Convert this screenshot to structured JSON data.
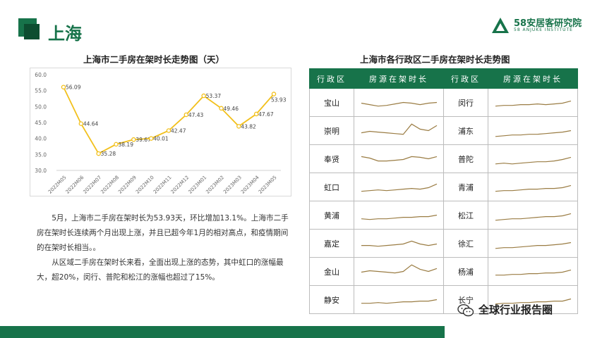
{
  "header": {
    "title": "上海",
    "logo_main": "58安居客研究院",
    "logo_sub": "58 ANJUKE INSTITUTE"
  },
  "colors": {
    "brand": "#17734a",
    "line": "#f2c01c",
    "spark": "#9a7c43"
  },
  "chart_data": [
    {
      "type": "line",
      "title": "上海市二手房在架时长走势图（天）",
      "categories": [
        "2022M05",
        "2022M06",
        "2022M07",
        "2022M08",
        "2022M09",
        "2022M10",
        "2022M11",
        "2022M12",
        "2023M01",
        "2023M02",
        "2023M03",
        "2023M04",
        "2023M05"
      ],
      "values": [
        56.09,
        44.64,
        35.28,
        38.19,
        39.67,
        40.01,
        42.47,
        47.43,
        53.37,
        49.46,
        43.82,
        47.67,
        53.93
      ],
      "value_labels": [
        "56.09",
        "44.64",
        "35.28",
        "38.19",
        "39.67",
        "40.01",
        "42.47",
        "47.43",
        "53.37",
        "49.46",
        "43.82",
        "47.67",
        "53.93"
      ],
      "yticks": [
        "60.0",
        "55.0",
        "50.0",
        "45.0",
        "40.0",
        "35.0",
        "30.0"
      ],
      "ylim": [
        30,
        60
      ],
      "grid": false,
      "legend": "none"
    },
    {
      "type": "table",
      "title": "上海市各行政区二手房在架时长走势图",
      "headers": [
        "行政区",
        "房源在架时长",
        "行政区",
        "房源在架时长"
      ],
      "rows": [
        {
          "d1": "宝山",
          "s1": [
            52,
            50,
            48,
            49,
            51,
            53,
            52,
            50,
            52,
            53
          ],
          "d2": "闵行",
          "s2": [
            48,
            49,
            49,
            50,
            50,
            51,
            50,
            51,
            52,
            55
          ]
        },
        {
          "d1": "崇明",
          "s1": [
            50,
            52,
            51,
            50,
            49,
            48,
            62,
            55,
            53,
            60
          ],
          "d2": "浦东",
          "s2": [
            45,
            46,
            47,
            47,
            48,
            48,
            49,
            50,
            51,
            53
          ]
        },
        {
          "d1": "奉贤",
          "s1": [
            56,
            54,
            50,
            50,
            51,
            52,
            56,
            55,
            53,
            56
          ],
          "d2": "普陀",
          "s2": [
            46,
            47,
            46,
            47,
            48,
            49,
            49,
            50,
            52,
            55
          ]
        },
        {
          "d1": "虹口",
          "s1": [
            47,
            48,
            49,
            48,
            49,
            50,
            51,
            50,
            52,
            57
          ],
          "d2": "青浦",
          "s2": [
            47,
            48,
            48,
            49,
            50,
            50,
            51,
            51,
            52,
            55
          ]
        },
        {
          "d1": "黄浦",
          "s1": [
            48,
            47,
            48,
            48,
            49,
            50,
            50,
            51,
            51,
            53
          ],
          "d2": "松江",
          "s2": [
            46,
            47,
            48,
            48,
            49,
            50,
            51,
            51,
            52,
            55
          ]
        },
        {
          "d1": "嘉定",
          "s1": [
            50,
            50,
            49,
            50,
            51,
            52,
            56,
            52,
            50,
            52
          ],
          "d2": "徐汇",
          "s2": [
            46,
            47,
            47,
            48,
            49,
            50,
            50,
            51,
            52,
            54
          ]
        },
        {
          "d1": "金山",
          "s1": [
            52,
            54,
            53,
            52,
            51,
            53,
            62,
            56,
            53,
            57
          ],
          "d2": "杨浦",
          "s2": [
            48,
            48,
            49,
            49,
            50,
            50,
            51,
            51,
            52,
            55
          ]
        },
        {
          "d1": "静安",
          "s1": [
            48,
            48,
            49,
            48,
            49,
            50,
            50,
            51,
            51,
            53
          ],
          "d2": "长宁",
          "s2": [
            47,
            48,
            48,
            49,
            49,
            50,
            50,
            51,
            51,
            54
          ]
        }
      ]
    }
  ],
  "description": {
    "p1": "5月，上海市二手房在架时长为53.93天，环比增加13.1%。上海市二手房在架时长连续两个月出现上涨，并且已超今年1月的相对高点，和疫情期间的在架时长相当。。",
    "p2": "从区域二手房在架时长来看，全面出现上涨的态势，其中虹口的涨幅最大，超20%，闵行、普陀和松江的涨幅也超过了15%。"
  },
  "footer": {
    "source_label": "全球行业报告圈",
    "source_icon": "wechat-icon"
  }
}
